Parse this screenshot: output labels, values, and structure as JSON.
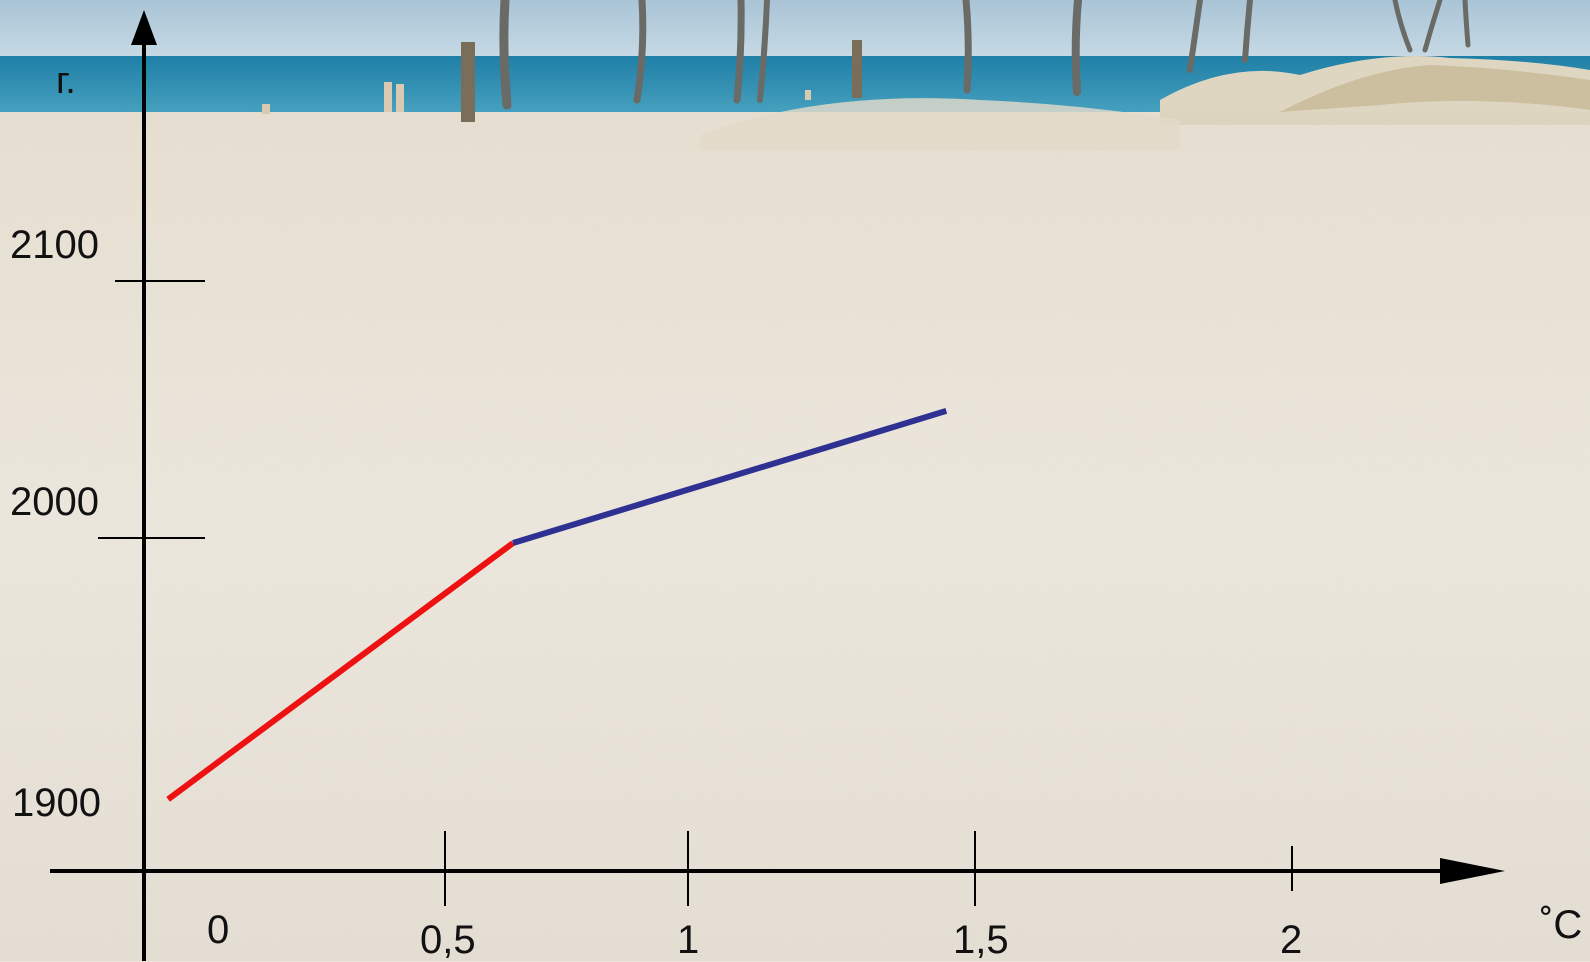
{
  "chart_data": {
    "type": "line",
    "xlabel": "˚C",
    "ylabel": "г.",
    "x_ticks": [
      "0",
      "0,5",
      "1",
      "1,5",
      "2"
    ],
    "y_ticks": [
      "1900",
      "2000",
      "2100"
    ],
    "series": [
      {
        "color": "#ee1111",
        "points": [
          [
            0.04,
            1904
          ],
          [
            0.64,
            2000
          ]
        ]
      },
      {
        "color": "#2e3192",
        "points": [
          [
            0.64,
            2000
          ],
          [
            1.45,
            2051
          ]
        ]
      }
    ],
    "grid": false,
    "legend": "none"
  },
  "background": {
    "sky_color": "#b8d0de",
    "sea_color": "#2e8fb0",
    "sand_color": "#ece6dc"
  }
}
